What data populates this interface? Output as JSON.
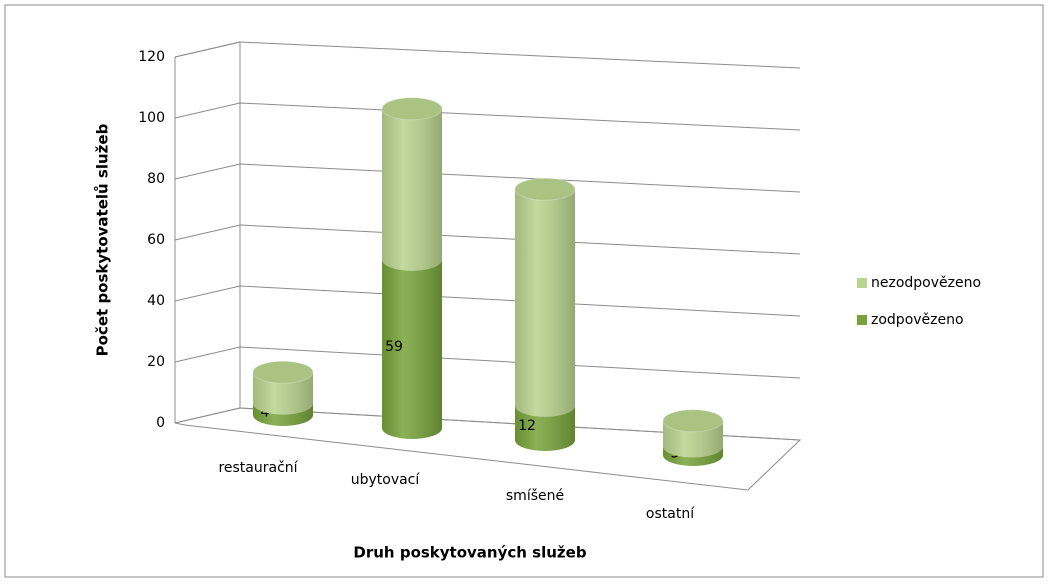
{
  "chart_data": {
    "type": "bar3d_stacked_cylinder",
    "categories": [
      "restaurační",
      "ubytovací",
      "smíšené",
      "ostatní"
    ],
    "series": [
      {
        "name": "zodpovězeno",
        "color": "#77a33a",
        "values": [
          4,
          59,
          12,
          3
        ]
      },
      {
        "name": "nezodpovězeno",
        "color": "#b9d48e",
        "values": [
          11,
          53,
          76,
          9
        ]
      }
    ],
    "ylim": [
      0,
      120
    ],
    "yticks": [
      0,
      20,
      40,
      60,
      80,
      100,
      120
    ],
    "y_label": "Počet poskytovatelů služeb",
    "x_label": "Druh poskytovaných služeb",
    "grid": true
  }
}
